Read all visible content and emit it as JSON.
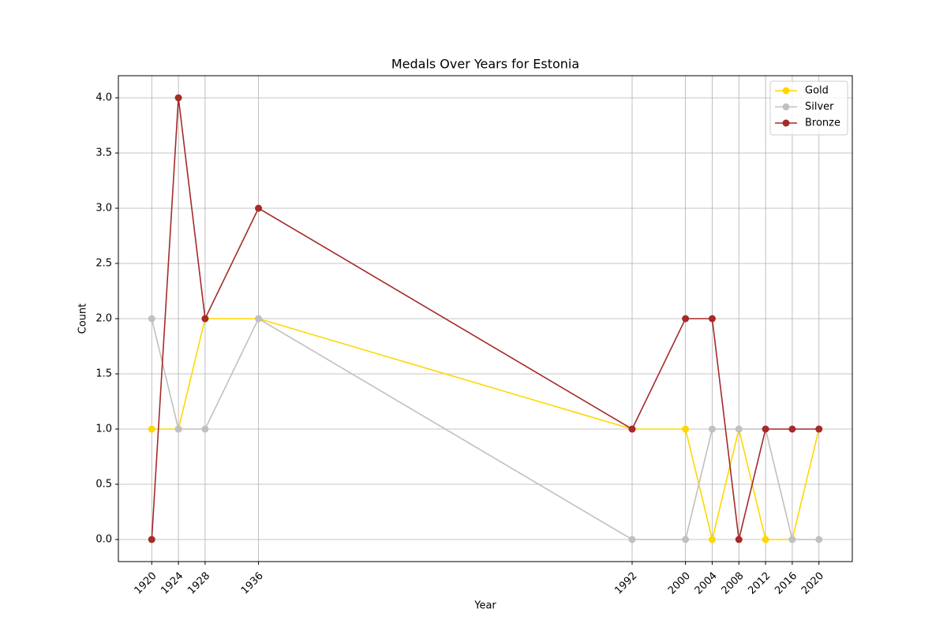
{
  "chart_data": {
    "type": "line",
    "title": "Medals Over Years for Estonia",
    "xlabel": "Year",
    "ylabel": "Count",
    "x": [
      1920,
      1924,
      1928,
      1936,
      1992,
      2000,
      2004,
      2008,
      2012,
      2016,
      2020
    ],
    "series": [
      {
        "name": "Gold",
        "color": "#FFD700",
        "values": [
          1,
          1,
          2,
          2,
          1,
          1,
          0,
          1,
          0,
          0,
          1
        ]
      },
      {
        "name": "Silver",
        "color": "#C0C0C0",
        "values": [
          2,
          1,
          1,
          2,
          0,
          0,
          1,
          1,
          1,
          0,
          0
        ]
      },
      {
        "name": "Bronze",
        "color": "#A52A2A",
        "values": [
          0,
          4,
          2,
          3,
          1,
          2,
          2,
          0,
          1,
          1,
          1
        ]
      }
    ],
    "xlim": [
      1915,
      2025
    ],
    "ylim": [
      -0.2,
      4.2
    ],
    "xticks": [
      1920,
      1924,
      1928,
      1936,
      1992,
      2000,
      2004,
      2008,
      2012,
      2016,
      2020
    ],
    "yticks": [
      {
        "value": 0,
        "label": "0.0"
      },
      0.5,
      {
        "value": 1,
        "label": "1.0"
      },
      1.5,
      {
        "value": 2,
        "label": "2.0"
      },
      2.5,
      {
        "value": 3,
        "label": "3.0"
      },
      3.5,
      {
        "value": 4,
        "label": "4.0"
      }
    ],
    "grid": true,
    "legend": "upper right"
  }
}
